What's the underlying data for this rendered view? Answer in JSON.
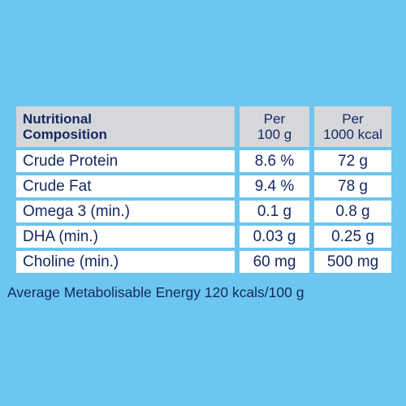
{
  "table": {
    "header": {
      "col_name_line1": "Nutritional",
      "col_name_line2": "Composition",
      "col_a_line1": "Per",
      "col_a_line2": "100 g",
      "col_b_line1": "Per",
      "col_b_line2": "1000 kcal"
    },
    "rows": [
      {
        "name": "Crude Protein",
        "a": "8.6 %",
        "b": "72 g"
      },
      {
        "name": "Crude Fat",
        "a": "9.4 %",
        "b": "78 g"
      },
      {
        "name": "Omega 3 (min.)",
        "a": "0.1 g",
        "b": "0.8 g"
      },
      {
        "name": "DHA (min.)",
        "a": "0.03 g",
        "b": "0.25 g"
      },
      {
        "name": "Choline (min.)",
        "a": "60 mg",
        "b": "500 mg"
      }
    ]
  },
  "footer": "Average Metabolisable Energy 120 kcals/100 g",
  "colors": {
    "background": "#6cc6ef",
    "header_bg": "#d5d7da",
    "text": "#14285f"
  }
}
